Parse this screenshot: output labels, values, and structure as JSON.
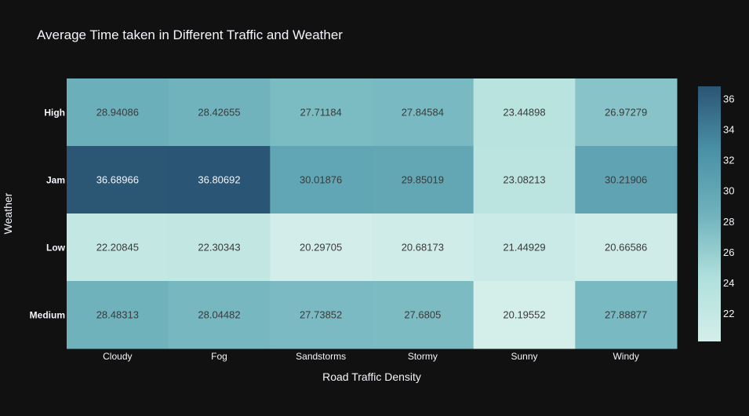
{
  "chart_data": {
    "type": "heatmap",
    "title": "Average Time taken in Different Traffic and Weather",
    "xlabel": "Road Traffic Density",
    "ylabel": "Weather",
    "x_categories": [
      "Cloudy",
      "Fog",
      "Sandstorms",
      "Stormy",
      "Sunny",
      "Windy"
    ],
    "y_categories": [
      "High",
      "Jam",
      "Low",
      "Medium"
    ],
    "cell_labels": [
      [
        "28.94086",
        "28.42655",
        "27.71184",
        "27.84584",
        "23.44898",
        "26.97279"
      ],
      [
        "36.68966",
        "36.80692",
        "30.01876",
        "29.85019",
        "23.08213",
        "30.21906"
      ],
      [
        "22.20845",
        "22.30343",
        "20.29705",
        "20.68173",
        "21.44929",
        "20.66586"
      ],
      [
        "28.48313",
        "28.04482",
        "27.73852",
        "27.6805",
        "20.19552",
        "27.88877"
      ]
    ],
    "colorbar": {
      "range": [
        20.19552,
        36.80692
      ],
      "ticks": [
        "22",
        "24",
        "26",
        "28",
        "30",
        "32",
        "34",
        "36"
      ],
      "colorscale": [
        "#d4eeea",
        "#b0e0dc",
        "#6fb2bc",
        "#4a91a6",
        "#2a5574"
      ]
    },
    "colors": {
      "background": "#111111",
      "text": "#f2f5fa",
      "cell_text_dark": "#3a3a3a",
      "cell_text_light": "#f2f5fa"
    }
  }
}
